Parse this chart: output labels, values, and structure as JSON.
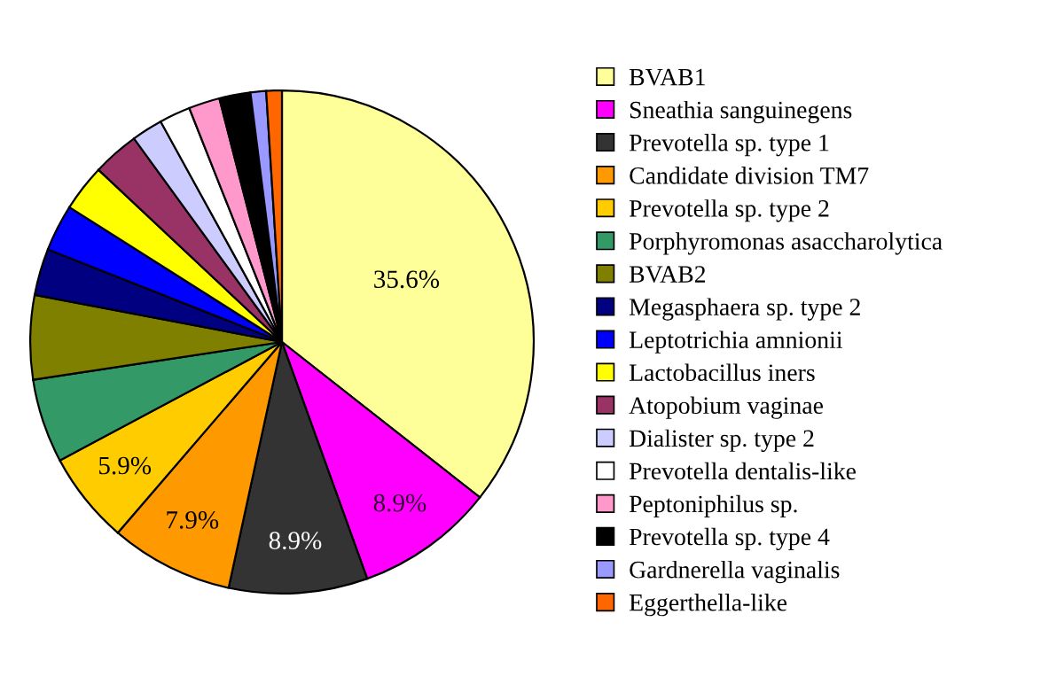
{
  "chart_data": {
    "type": "pie",
    "legend": "right",
    "categories": [
      "BVAB1",
      "Sneathia sanguinegens",
      "Prevotella sp. type 1",
      "Candidate division TM7",
      "Prevotella sp. type 2",
      "Porphyromonas asaccharolytica",
      "BVAB2",
      "Megasphaera sp. type 2",
      "Leptotrichia amnionii",
      "Lactobacillus iners",
      "Atopobium vaginae",
      "Dialister sp. type 2",
      "Prevotella dentalis-like",
      "Peptoniphilus sp.",
      "Prevotella sp. type 4",
      "Gardnerella vaginalis",
      "Eggerthella-like"
    ],
    "values": [
      35.6,
      8.9,
      8.9,
      7.9,
      5.9,
      5.4,
      5.4,
      3.0,
      3.0,
      3.0,
      3.0,
      2.0,
      2.0,
      2.0,
      2.0,
      1.0,
      1.0
    ],
    "value_labels": [
      "35.6%",
      "8.9%",
      "8.9%",
      "7.9%",
      "5.9%",
      null,
      null,
      null,
      null,
      null,
      null,
      null,
      null,
      null,
      null,
      null,
      null
    ],
    "colors": [
      "#ffff99",
      "#ff00ff",
      "#333333",
      "#ff9900",
      "#ffcc00",
      "#339966",
      "#808000",
      "#000080",
      "#0000ff",
      "#ffff00",
      "#993366",
      "#ccccff",
      "#ffffff",
      "#ff99cc",
      "#000000",
      "#9999ff",
      "#ff6600"
    ]
  }
}
